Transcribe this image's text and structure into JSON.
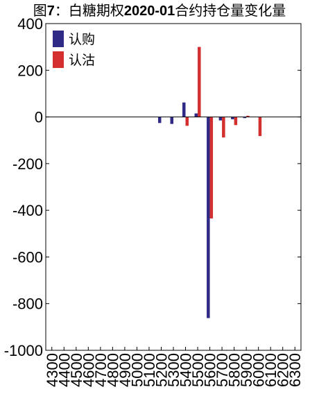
{
  "title": {
    "prefix": "图",
    "number": "7",
    "sep": "：白糖期权",
    "contract": "2020-01",
    "suffix": "合约持仓量变化量"
  },
  "chart_data": {
    "type": "bar",
    "title": "图7：白糖期权2020-01合约持仓量变化量",
    "xlabel": "",
    "ylabel": "",
    "ylim": [
      -1000,
      400
    ],
    "yticks": [
      -1000,
      -800,
      -600,
      -400,
      -200,
      0,
      200,
      400
    ],
    "grid": false,
    "legend_position": "top-left",
    "categories": [
      "4300",
      "4400",
      "4500",
      "4600",
      "4700",
      "4800",
      "4900",
      "5000",
      "5100",
      "5200",
      "5300",
      "5400",
      "5500",
      "5600",
      "5700",
      "5800",
      "5900",
      "6000",
      "6100",
      "6200",
      "6300"
    ],
    "series": [
      {
        "name": "认购",
        "color": "#2e2a86",
        "values": [
          0,
          0,
          0,
          0,
          0,
          0,
          0,
          0,
          0,
          -26,
          -30,
          62,
          15,
          -862,
          -15,
          -10,
          -5,
          0,
          0,
          0,
          0
        ]
      },
      {
        "name": "认沽",
        "color": "#d32f2f",
        "values": [
          0,
          0,
          0,
          0,
          0,
          0,
          0,
          0,
          0,
          0,
          0,
          -38,
          300,
          -435,
          -88,
          -35,
          5,
          -82,
          0,
          0,
          0
        ]
      }
    ]
  }
}
